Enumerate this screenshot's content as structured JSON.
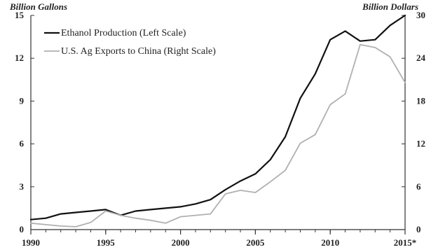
{
  "chart_data": {
    "type": "line",
    "title": "",
    "y_left_label": "Billion Gallons",
    "y_right_label": "Billion Dollars",
    "y_left_range": [
      0,
      15
    ],
    "y_right_range": [
      0,
      30
    ],
    "y_left_ticks": [
      "0",
      "3",
      "6",
      "9",
      "12",
      "15"
    ],
    "y_right_ticks": [
      "0",
      "6",
      "12",
      "18",
      "24",
      "30"
    ],
    "x_range": [
      1990,
      2015
    ],
    "x_tick_values": [
      1990,
      1995,
      2000,
      2005,
      2010,
      2015
    ],
    "x_tick_labels": [
      "1990",
      "1995",
      "2000",
      "2005",
      "2010",
      "2015*"
    ],
    "grid": false,
    "legend_position": "top-left",
    "series": [
      {
        "name": "Ethanol Production (Left Scale)",
        "axis": "left",
        "color": "#111111",
        "x": [
          1990,
          1991,
          1992,
          1993,
          1994,
          1995,
          1996,
          1997,
          1998,
          1999,
          2000,
          2001,
          2002,
          2003,
          2004,
          2005,
          2006,
          2007,
          2008,
          2009,
          2010,
          2011,
          2012,
          2013,
          2014,
          2015
        ],
        "y": [
          0.7,
          0.8,
          1.1,
          1.2,
          1.3,
          1.4,
          1.0,
          1.3,
          1.4,
          1.5,
          1.6,
          1.8,
          2.1,
          2.8,
          3.4,
          3.9,
          4.9,
          6.5,
          9.2,
          10.9,
          13.3,
          13.9,
          13.2,
          13.3,
          14.3,
          15.0
        ]
      },
      {
        "name": "U.S. Ag Exports to China (Right Scale)",
        "axis": "right",
        "color": "#b0b0b0",
        "x": [
          1990,
          1991,
          1992,
          1993,
          1994,
          1995,
          1996,
          1997,
          1998,
          1999,
          2000,
          2001,
          2002,
          2003,
          2004,
          2005,
          2006,
          2007,
          2008,
          2009,
          2010,
          2011,
          2012,
          2013,
          2014,
          2015
        ],
        "y": [
          0.9,
          0.7,
          0.5,
          0.4,
          1.0,
          2.6,
          2.0,
          1.6,
          1.3,
          0.9,
          1.8,
          2.0,
          2.2,
          5.0,
          5.5,
          5.2,
          6.7,
          8.3,
          12.1,
          13.3,
          17.5,
          19.0,
          25.9,
          25.5,
          24.2,
          20.6
        ]
      }
    ]
  }
}
